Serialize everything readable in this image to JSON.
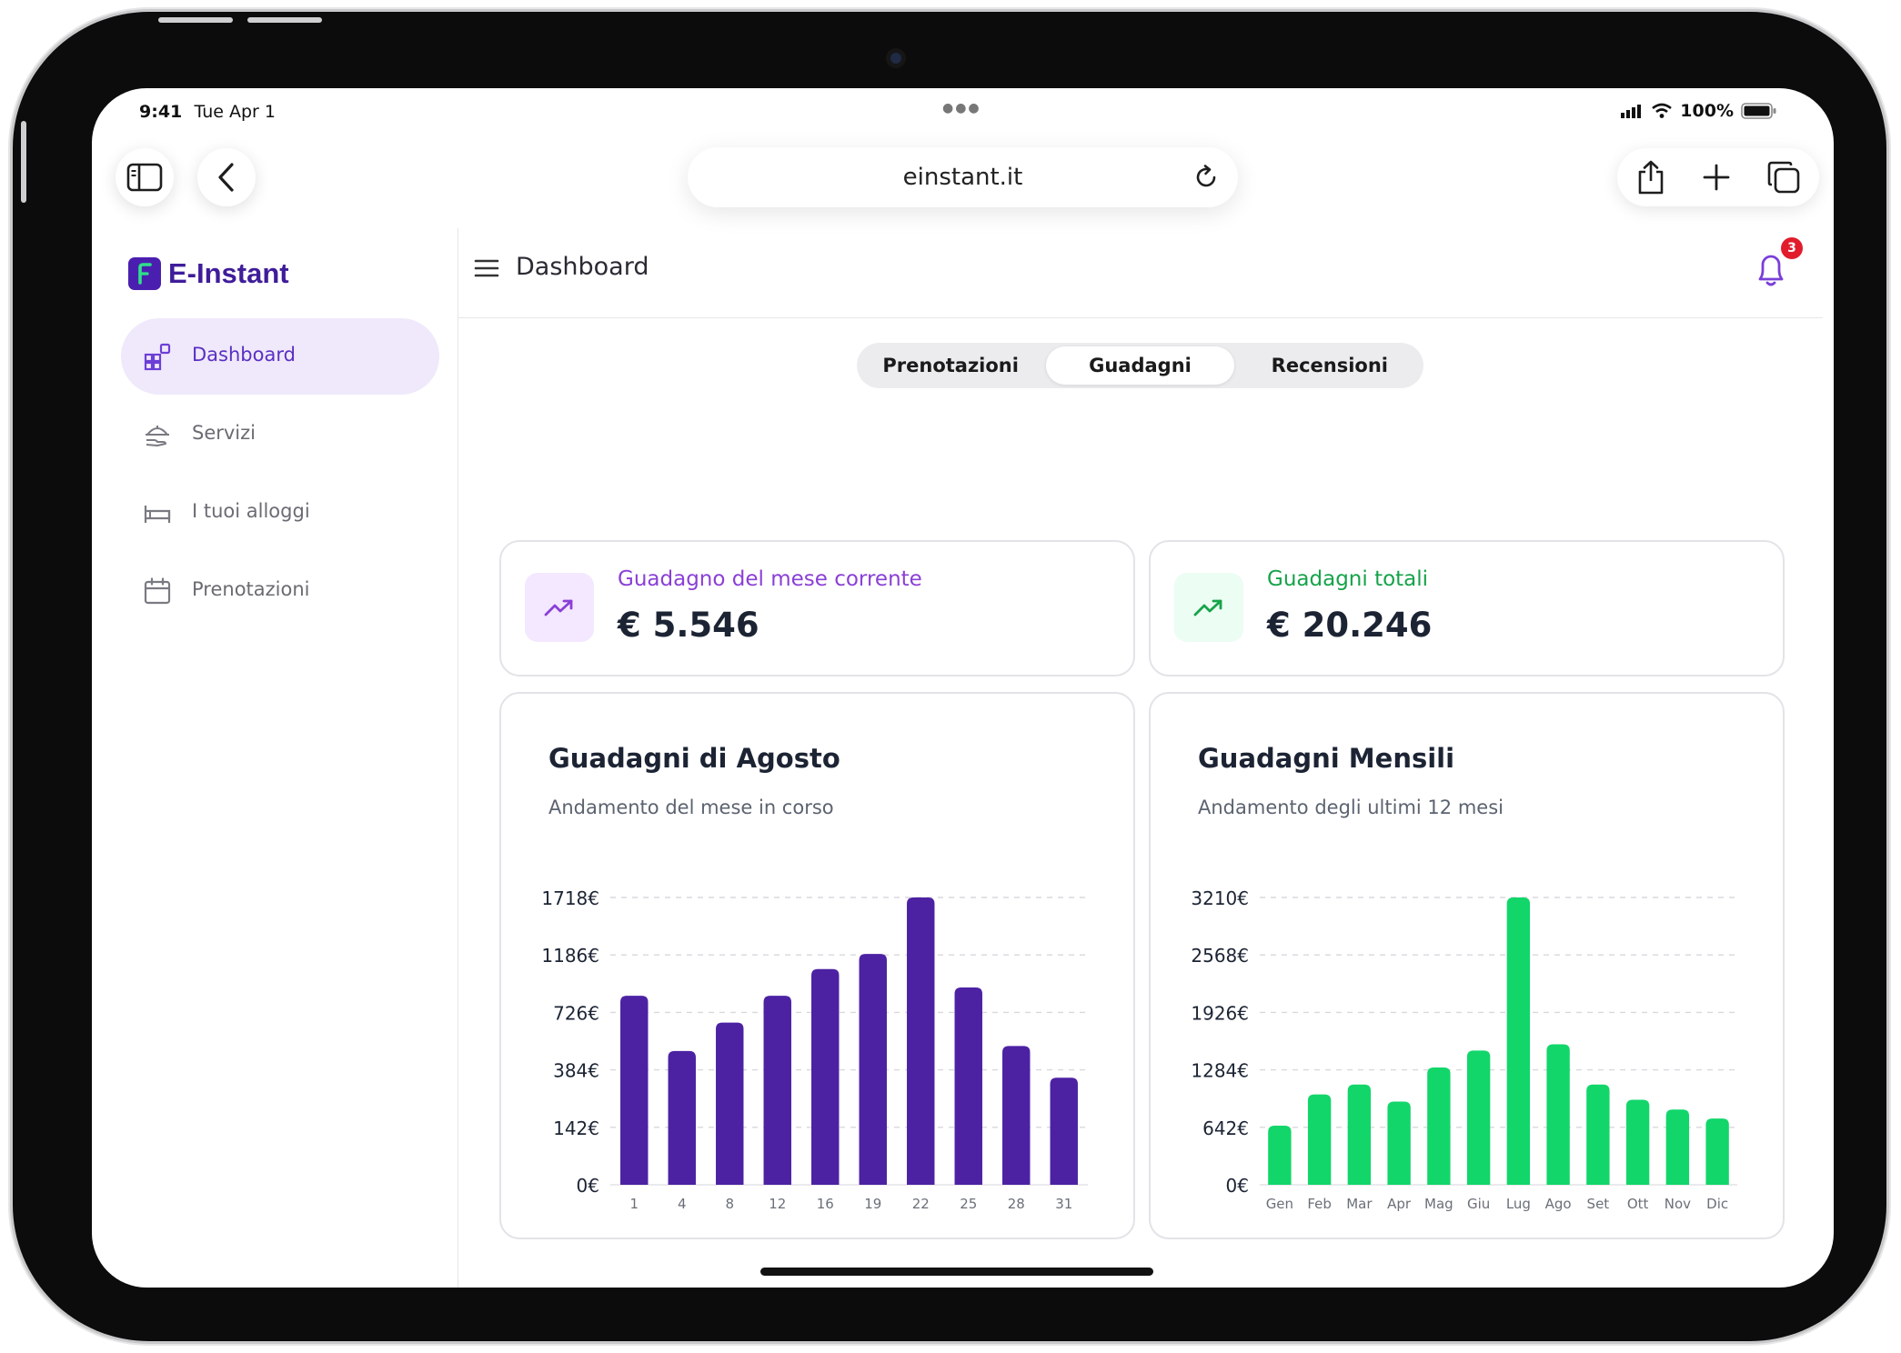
{
  "status_bar": {
    "time": "9:41",
    "date": "Tue Apr 1",
    "battery": "100%"
  },
  "browser": {
    "url": "einstant.it"
  },
  "brand": {
    "name": "E-Instant",
    "color": "#4525a8"
  },
  "sidebar": {
    "items": [
      {
        "label": "Dashboard",
        "icon": "dashboard-icon",
        "active": true
      },
      {
        "label": "Servizi",
        "icon": "services-icon",
        "active": false
      },
      {
        "label": "I tuoi alloggi",
        "icon": "bed-icon",
        "active": false
      },
      {
        "label": "Prenotazioni",
        "icon": "calendar-icon",
        "active": false
      }
    ]
  },
  "header": {
    "title": "Dashboard",
    "notifications": "3"
  },
  "tabs": [
    {
      "label": "Prenotazioni",
      "active": false
    },
    {
      "label": "Guadagni",
      "active": true
    },
    {
      "label": "Recensioni",
      "active": false
    }
  ],
  "kpis": [
    {
      "label": "Guadagno del mese corrente",
      "value": "€ 5.546",
      "color": "#8b3fd6",
      "bg": "#f3e8ff"
    },
    {
      "label": "Guadagni totali",
      "value": "€ 20.246",
      "color": "#16a34a",
      "bg": "#ecfdf3"
    }
  ],
  "chart_data": [
    {
      "type": "bar",
      "title": "Guadagni di Agosto",
      "subtitle": "Andamento del mese in corso",
      "categories": [
        "1",
        "4",
        "8",
        "12",
        "16",
        "19",
        "22",
        "25",
        "28",
        "31"
      ],
      "values": [
        1130,
        800,
        970,
        1130,
        1290,
        1380,
        1718,
        1180,
        830,
        640
      ],
      "y_ticks": [
        "0€",
        "142€",
        "384€",
        "726€",
        "1186€",
        "1718€"
      ],
      "ylim": [
        0,
        1718
      ],
      "grid": true,
      "color": "#4c22a3"
    },
    {
      "type": "bar",
      "title": "Guadagni Mensili",
      "subtitle": "Andamento degli ultimi 12 mesi",
      "categories": [
        "Gen",
        "Feb",
        "Mar",
        "Apr",
        "Mag",
        "Giu",
        "Lug",
        "Ago",
        "Set",
        "Ott",
        "Nov",
        "Dic"
      ],
      "values": [
        660,
        1010,
        1120,
        930,
        1310,
        1500,
        3210,
        1570,
        1120,
        950,
        840,
        740
      ],
      "y_ticks": [
        "0€",
        "642€",
        "1284€",
        "1926€",
        "2568€",
        "3210€"
      ],
      "ylim": [
        0,
        3210
      ],
      "grid": true,
      "color": "#12d66a"
    }
  ]
}
